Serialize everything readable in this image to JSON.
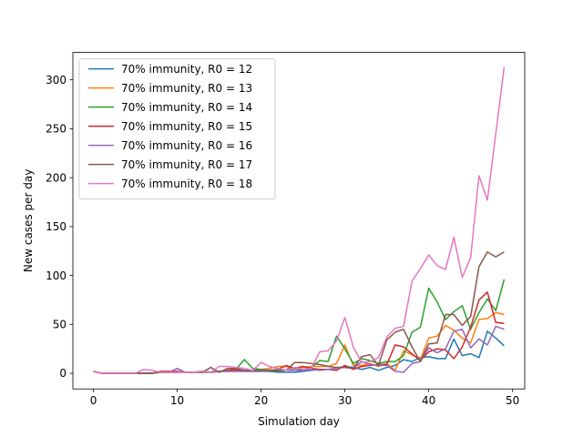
{
  "chart_data": {
    "type": "line",
    "title": "",
    "xlabel": "Simulation day",
    "ylabel": "New cases per day",
    "xlim": [
      -2.45,
      51.45
    ],
    "ylim": [
      -16,
      328
    ],
    "xticks": [
      0,
      10,
      20,
      30,
      40,
      50
    ],
    "yticks": [
      0,
      50,
      100,
      150,
      200,
      250,
      300
    ],
    "grid": false,
    "legend_position": "upper-left",
    "x": [
      0,
      1,
      2,
      3,
      4,
      5,
      6,
      7,
      8,
      9,
      10,
      11,
      12,
      13,
      14,
      15,
      16,
      17,
      18,
      19,
      20,
      21,
      22,
      23,
      24,
      25,
      26,
      27,
      28,
      29,
      30,
      31,
      32,
      33,
      34,
      35,
      36,
      37,
      38,
      39,
      40,
      41,
      42,
      43,
      44,
      45,
      46,
      47,
      48,
      49
    ],
    "series": [
      {
        "name": "70% immunity, R0 = 12",
        "color": "#1f77b4",
        "values": [
          2,
          0,
          0,
          0,
          0,
          0,
          0,
          0,
          1,
          1,
          2,
          1,
          1,
          1,
          1,
          2,
          2,
          2,
          2,
          2,
          2,
          2,
          1,
          1,
          1,
          2,
          3,
          4,
          4,
          5,
          7,
          6,
          4,
          6,
          3,
          6,
          8,
          14,
          12,
          16,
          17,
          15,
          15,
          35,
          18,
          20,
          16,
          43,
          36,
          28
        ]
      },
      {
        "name": "70% immunity, R0 = 13",
        "color": "#ff7f0e",
        "values": [
          2,
          0,
          0,
          0,
          0,
          0,
          0,
          0,
          1,
          1,
          1,
          1,
          1,
          1,
          1,
          2,
          2,
          3,
          3,
          3,
          4,
          5,
          7,
          7,
          5,
          6,
          7,
          7,
          7,
          10,
          29,
          8,
          8,
          10,
          7,
          10,
          3,
          23,
          19,
          14,
          36,
          38,
          49,
          44,
          36,
          31,
          55,
          56,
          62,
          60
        ]
      },
      {
        "name": "70% immunity, R0 = 14",
        "color": "#2ca02c",
        "values": [
          2,
          0,
          0,
          0,
          0,
          0,
          0,
          0,
          1,
          1,
          1,
          1,
          1,
          1,
          1,
          2,
          3,
          4,
          14,
          5,
          4,
          3,
          2,
          3,
          5,
          4,
          6,
          13,
          12,
          38,
          25,
          10,
          15,
          13,
          10,
          12,
          12,
          18,
          42,
          47,
          87,
          73,
          55,
          63,
          69,
          45,
          62,
          76,
          64,
          96
        ]
      },
      {
        "name": "70% immunity, R0 = 15",
        "color": "#d62728",
        "values": [
          2,
          0,
          0,
          0,
          0,
          0,
          0,
          0,
          2,
          2,
          2,
          1,
          1,
          2,
          1,
          2,
          3,
          4,
          2,
          2,
          3,
          3,
          4,
          8,
          5,
          7,
          5,
          4,
          4,
          3,
          8,
          4,
          7,
          8,
          9,
          9,
          29,
          27,
          20,
          13,
          22,
          25,
          24,
          15,
          27,
          47,
          75,
          83,
          52,
          51
        ]
      },
      {
        "name": "70% immunity, R0 = 16",
        "color": "#9467bd",
        "values": [
          2,
          0,
          0,
          0,
          0,
          0,
          0,
          0,
          1,
          1,
          5,
          1,
          1,
          2,
          1,
          2,
          2,
          2,
          2,
          2,
          2,
          3,
          4,
          3,
          3,
          3,
          4,
          3,
          4,
          5,
          6,
          5,
          12,
          9,
          8,
          8,
          2,
          1,
          10,
          12,
          26,
          21,
          25,
          43,
          45,
          26,
          35,
          29,
          48,
          45
        ]
      },
      {
        "name": "70% immunity, R0 = 17",
        "color": "#8c564b",
        "values": [
          2,
          0,
          0,
          0,
          0,
          0,
          0,
          0,
          1,
          1,
          1,
          1,
          1,
          1,
          6,
          1,
          5,
          5,
          3,
          3,
          3,
          3,
          3,
          3,
          11,
          11,
          10,
          9,
          7,
          6,
          6,
          5,
          17,
          19,
          8,
          34,
          42,
          45,
          27,
          12,
          30,
          31,
          60,
          60,
          49,
          58,
          109,
          124,
          119,
          124
        ]
      },
      {
        "name": "70% immunity, R0 = 18",
        "color": "#e377c2",
        "values": [
          2,
          0,
          0,
          0,
          0,
          0,
          4,
          3,
          1,
          1,
          1,
          1,
          1,
          2,
          1,
          7,
          7,
          6,
          5,
          3,
          11,
          7,
          5,
          3,
          6,
          4,
          5,
          22,
          23,
          33,
          57,
          27,
          11,
          12,
          16,
          37,
          46,
          48,
          94,
          107,
          121,
          110,
          106,
          139,
          98,
          118,
          202,
          177,
          245,
          313
        ]
      }
    ]
  }
}
